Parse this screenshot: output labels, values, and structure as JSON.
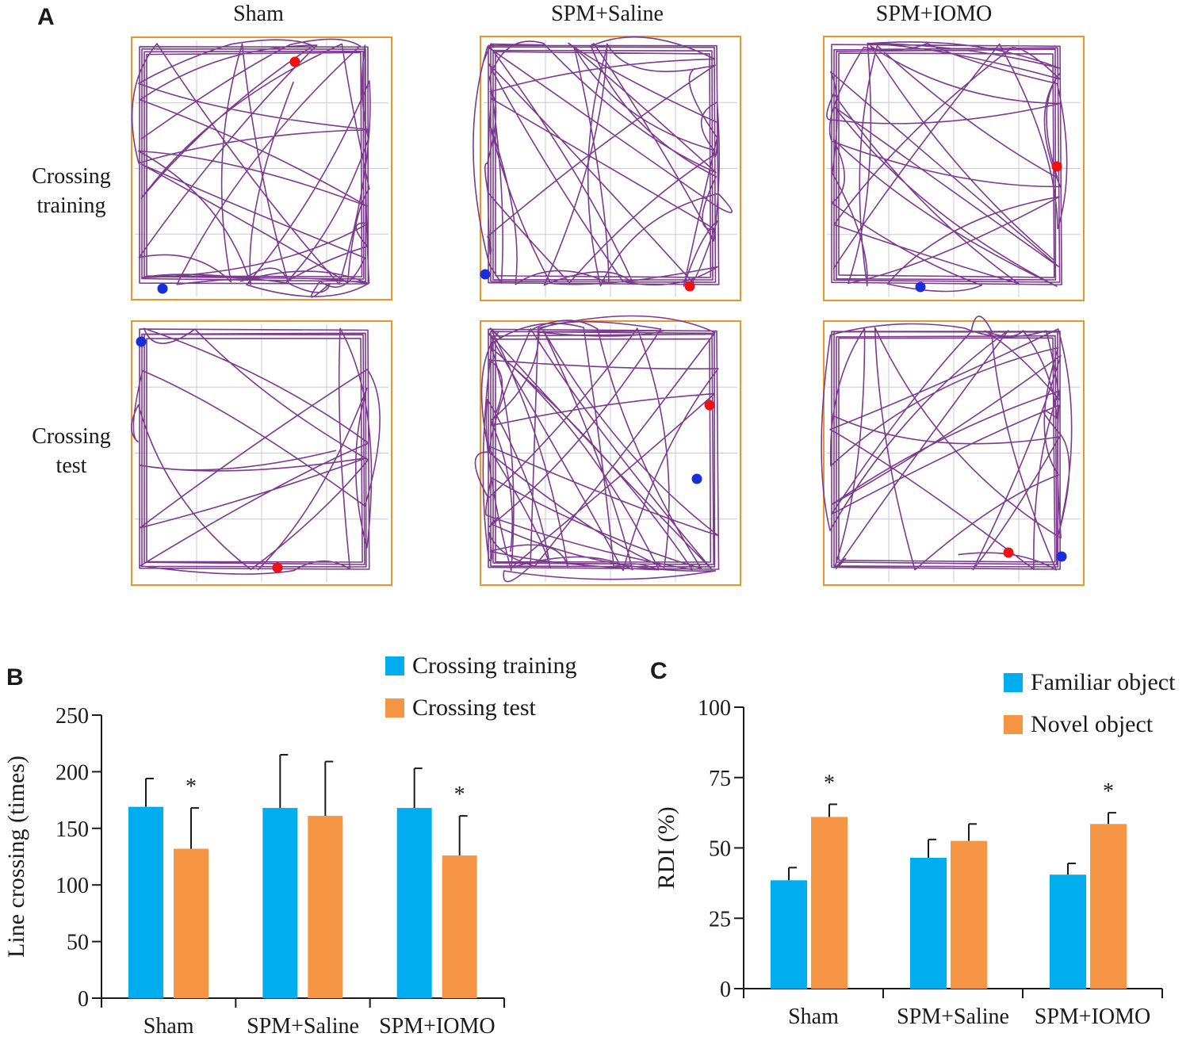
{
  "panel_a": {
    "letter": "A",
    "columns": [
      "Sham",
      "SPM+Saline",
      "SPM+IOMO"
    ],
    "rows": [
      {
        "line1": "Crossing",
        "line2": "training"
      },
      {
        "line1": "Crossing",
        "line2": "test"
      }
    ],
    "colors": {
      "frame": "#e8952e",
      "grid": "#c8c8d8",
      "track": "#7b3a8e",
      "start_marker": "#1a2ed8",
      "end_marker": "#ee1111"
    }
  },
  "panel_b": {
    "letter": "B"
  },
  "panel_c": {
    "letter": "C"
  },
  "chart_data": [
    {
      "type": "bar",
      "categories": [
        "Sham",
        "SPM+Saline",
        "SPM+IOMO"
      ],
      "ylabel": "Line crossing (times)",
      "xlabel": "",
      "ylim": [
        0,
        250
      ],
      "yticks": [
        "0",
        "50",
        "100",
        "150",
        "200",
        "250"
      ],
      "series": [
        {
          "name": "Crossing training",
          "color": "#00adef",
          "values": [
            169,
            168,
            168
          ],
          "errors": [
            25,
            47,
            35
          ]
        },
        {
          "name": "Crossing test",
          "color": "#f69644",
          "values": [
            132,
            161,
            126
          ],
          "errors": [
            36,
            48,
            35
          ]
        }
      ],
      "significance": [
        "*",
        "",
        "*"
      ],
      "legend_position": "top-right",
      "grid": false
    },
    {
      "type": "bar",
      "categories": [
        "Sham",
        "SPM+Saline",
        "SPM+IOMO"
      ],
      "ylabel": "RDI (%)",
      "xlabel": "",
      "ylim": [
        0,
        100
      ],
      "yticks": [
        "0",
        "25",
        "50",
        "75",
        "100"
      ],
      "series": [
        {
          "name": "Familiar object",
          "color": "#00adef",
          "values": [
            38.5,
            46.5,
            40.5
          ],
          "errors": [
            4.5,
            6.5,
            4
          ]
        },
        {
          "name": "Novel object",
          "color": "#f69644",
          "values": [
            61,
            52.5,
            58.5
          ],
          "errors": [
            4.5,
            6,
            4
          ]
        }
      ],
      "significance": [
        "*",
        "",
        "*"
      ],
      "legend_position": "top-right",
      "grid": false
    }
  ]
}
